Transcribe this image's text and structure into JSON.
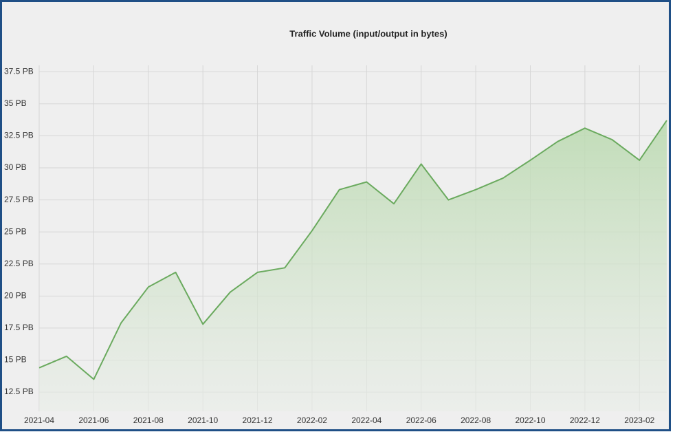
{
  "chart_data": {
    "type": "area",
    "title": "Traffic Volume (input/output in bytes)",
    "categories": [
      "2021-04",
      null,
      "2021-06",
      null,
      "2021-08",
      null,
      "2021-10",
      null,
      "2021-12",
      null,
      "2022-02",
      null,
      "2022-04",
      null,
      "2022-06",
      null,
      "2022-08",
      null,
      "2022-10",
      null,
      "2022-12",
      null,
      "2023-02",
      null
    ],
    "values": [
      14.4,
      15.3,
      13.5,
      17.9,
      20.7,
      21.85,
      17.8,
      20.3,
      21.85,
      22.2,
      25.1,
      28.3,
      28.9,
      27.2,
      30.3,
      27.5,
      28.3,
      29.2,
      30.6,
      32.05,
      33.1,
      32.2,
      30.6,
      33.7
    ],
    "color": "#6aaa5e",
    "ylim": [
      11,
      38
    ],
    "yticks": [
      {
        "value": 12.5,
        "label": "12.5 PB"
      },
      {
        "value": 15,
        "label": "15 PB"
      },
      {
        "value": 17.5,
        "label": "17.5 PB"
      },
      {
        "value": 20,
        "label": "20 PB"
      },
      {
        "value": 22.5,
        "label": "22.5 PB"
      },
      {
        "value": 25,
        "label": "25 PB"
      },
      {
        "value": 27.5,
        "label": "27.5 PB"
      },
      {
        "value": 30,
        "label": "30 PB"
      },
      {
        "value": 32.5,
        "label": "32.5 PB"
      },
      {
        "value": 35,
        "label": "35 PB"
      },
      {
        "value": 37.5,
        "label": "37.5 PB"
      }
    ],
    "grid": true
  }
}
